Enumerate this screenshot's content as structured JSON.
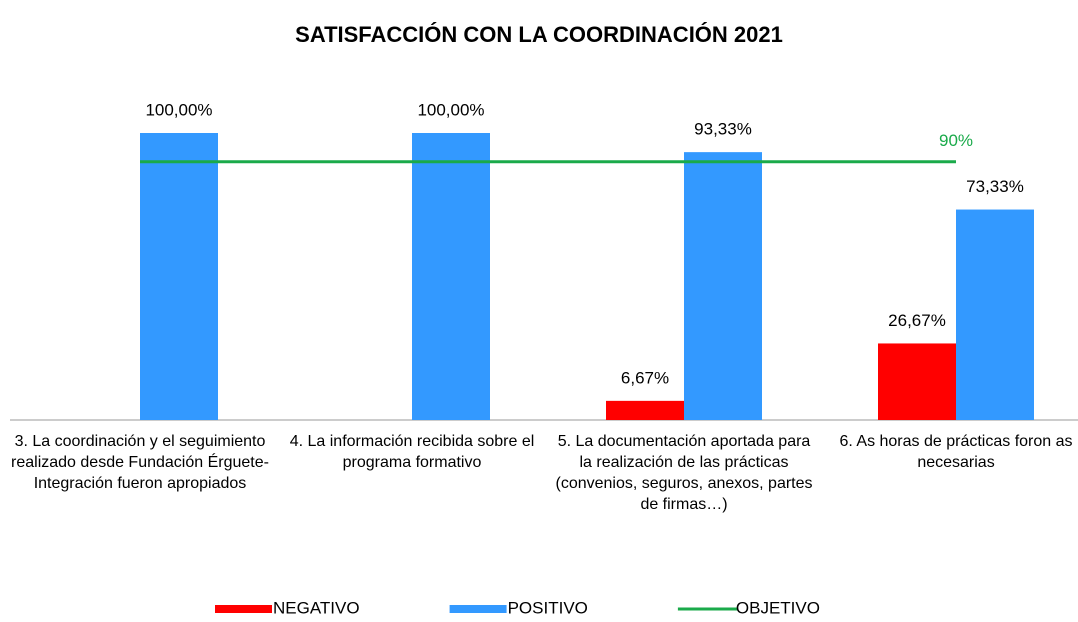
{
  "chart_data": {
    "type": "bar",
    "title": "SATISFACCIÓN CON LA COORDINACIÓN 2021",
    "categories": [
      "3. La coordinación y el seguimiento realizado desde Fundación Érguete-Integración fueron apropiados",
      "4.  La información recibida sobre el programa formativo",
      "5. La documentación aportada para la realización de las prácticas (convenios, seguros, anexos, partes de firmas…)",
      "6. As horas de prácticas foron as necesarias"
    ],
    "series": [
      {
        "name": "NEGATIVO",
        "color": "#ff0000",
        "values": [
          null,
          null,
          6.67,
          26.67
        ],
        "value_labels": [
          null,
          null,
          "6,67%",
          "26,67%"
        ]
      },
      {
        "name": "POSITIVO",
        "color": "#3399ff",
        "values": [
          100,
          100,
          93.33,
          73.33
        ],
        "value_labels": [
          "100,00%",
          "100,00%",
          "93,33%",
          "73,33%"
        ]
      },
      {
        "name": "OBJETIVO",
        "color": "#1aaa4a",
        "type": "line",
        "values": [
          90,
          90,
          90,
          90
        ],
        "value_labels": [
          null,
          null,
          null,
          "90%"
        ]
      }
    ],
    "ylim": [
      0,
      100
    ],
    "legend": "bottom"
  }
}
